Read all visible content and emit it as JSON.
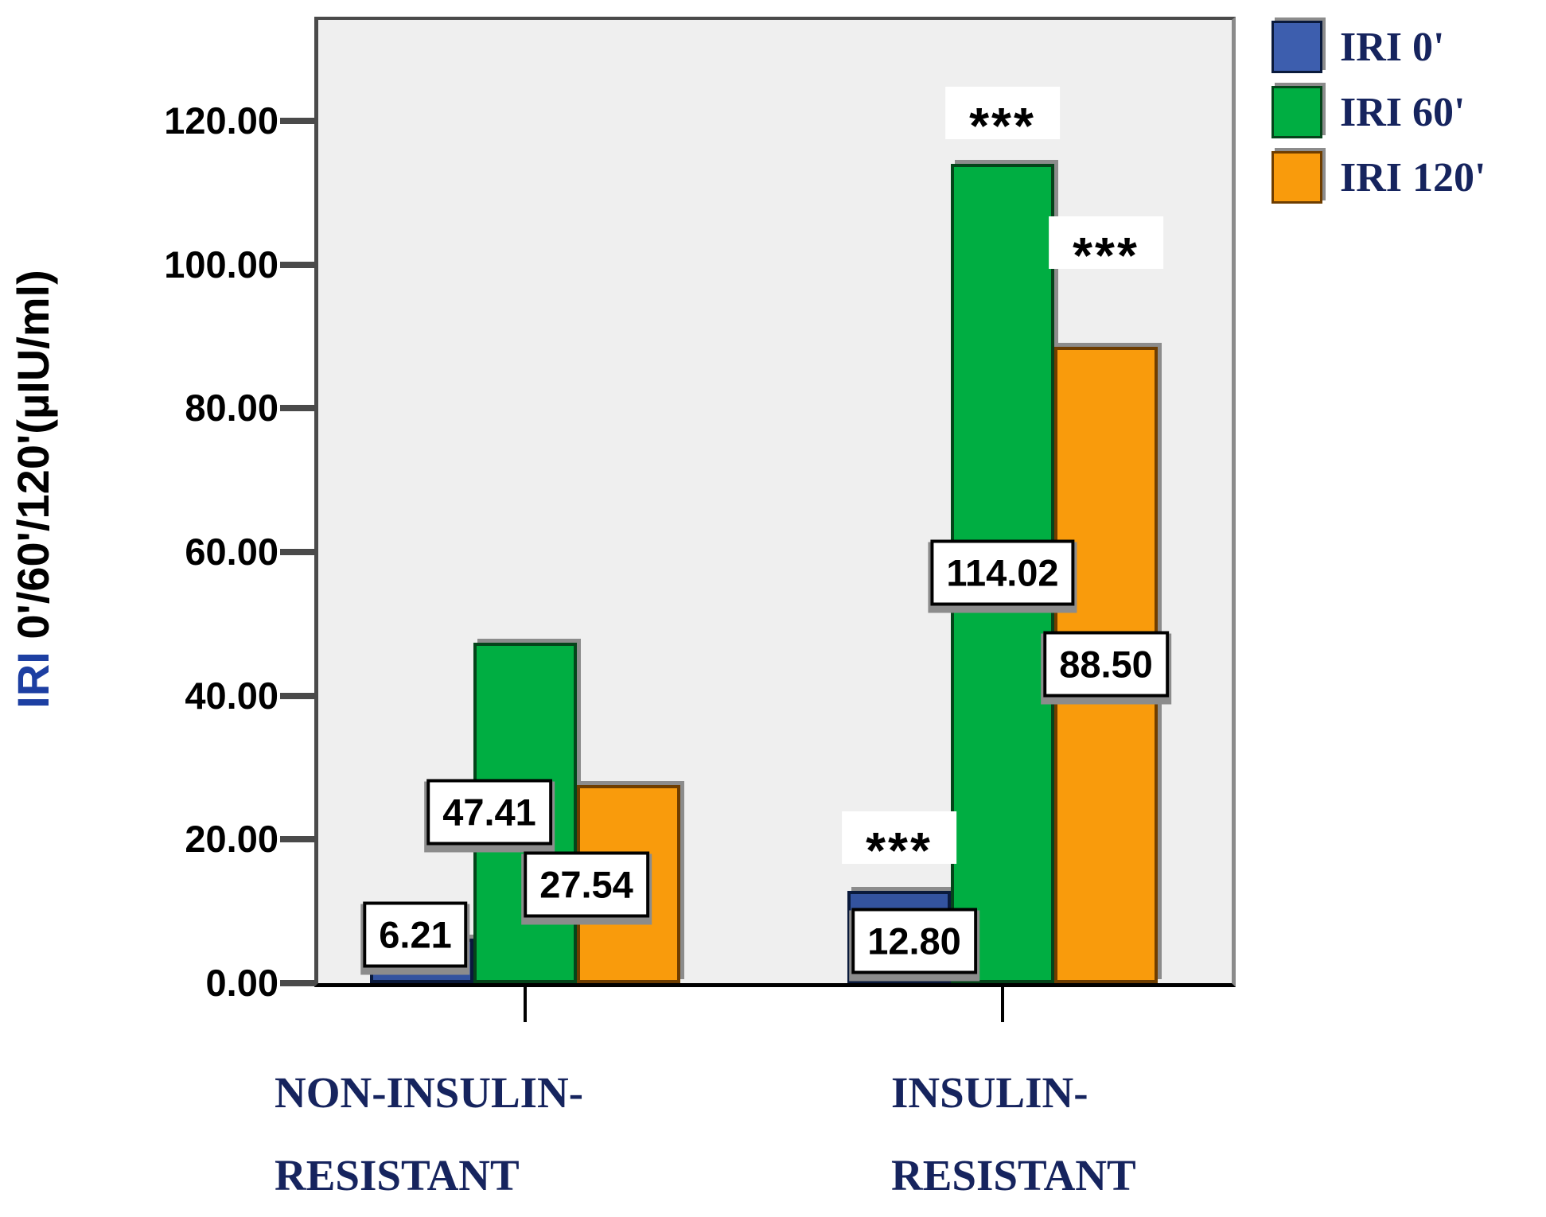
{
  "chart_data": {
    "type": "bar",
    "title": "",
    "y_title": "IRI 0'/60'/120'(µIU/ml)",
    "y_title_accent": "IRI ",
    "y_title_rest": "0'/60'/120'(µIU/ml)",
    "categories": [
      {
        "line1": "NON-INSULIN-",
        "line2": "RESISTANT"
      },
      {
        "line1": "INSULIN-",
        "line2": "RESISTANT"
      }
    ],
    "series": [
      {
        "name": "IRI 0'",
        "color": "#33539F",
        "legend_color": "#3D5EAE",
        "border_color": "#0A1A3C",
        "values": [
          6.21,
          12.8
        ],
        "value_labels": [
          "6.21",
          "12.80"
        ]
      },
      {
        "name": "IRI 60'",
        "color": "#00AE42",
        "legend_color": "#00AE42",
        "border_color": "#04441A",
        "values": [
          47.41,
          114.02
        ],
        "value_labels": [
          "47.41",
          "114.02"
        ]
      },
      {
        "name": "IRI 120'",
        "color": "#F99B0C",
        "legend_color": "#F99B0C",
        "border_color": "#6E3D00",
        "values": [
          27.54,
          88.5
        ],
        "value_labels": [
          "27.54",
          "88.50"
        ]
      }
    ],
    "significance_markers": [
      {
        "category": 1,
        "series": 0,
        "text": "***"
      },
      {
        "category": 1,
        "series": 1,
        "text": "***"
      },
      {
        "category": 1,
        "series": 2,
        "text": "***"
      }
    ],
    "yticks": [
      "0.00",
      "20.00",
      "40.00",
      "60.00",
      "80.00",
      "100.00",
      "120.00"
    ],
    "ytick_values": [
      0,
      20,
      40,
      60,
      80,
      100,
      120
    ],
    "ylim": [
      0,
      134
    ],
    "grid": "off",
    "legend_position": "top-right",
    "plot_background": "#EFEFEF",
    "shadow_color": "#8C8C8C",
    "category_text_color": "#16245E"
  }
}
